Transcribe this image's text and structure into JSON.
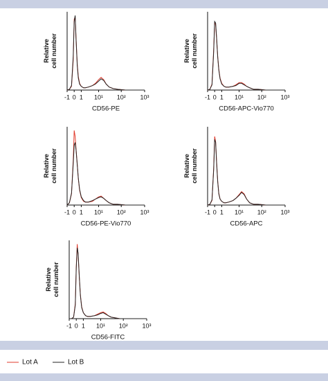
{
  "legend": [
    {
      "name": "Lot A",
      "color": "#e0392b"
    },
    {
      "name": "Lot B",
      "color": "#222222"
    }
  ],
  "chart_data": [
    {
      "type": "line",
      "xlabel": "CD56-PE",
      "ylabel": [
        "Relative",
        "cell number"
      ],
      "xscale": "symlog",
      "xlim": [
        -1,
        1000
      ],
      "ylim": [
        0,
        105
      ],
      "xticks": [
        -1,
        0,
        1,
        {
          "value": 10,
          "label": "10¹"
        },
        {
          "value": 100,
          "label": "10²"
        },
        {
          "value": 1000,
          "label": "10³"
        }
      ],
      "x": [
        -1,
        -0.6,
        -0.3,
        -0.1,
        0,
        0.1,
        0.2,
        0.35,
        0.5,
        0.7,
        1,
        1.5,
        2,
        3,
        5,
        7,
        10,
        13,
        17,
        22,
        30,
        45,
        70,
        150,
        1000
      ],
      "series": [
        {
          "values": [
            0,
            1,
            5,
            40,
            95,
            98,
            70,
            35,
            18,
            9,
            5,
            3,
            3,
            4,
            6,
            9,
            14,
            17,
            14,
            8,
            4,
            2,
            1,
            0,
            0
          ]
        },
        {
          "values": [
            0,
            1,
            6,
            45,
            92,
            100,
            68,
            33,
            16,
            8,
            5,
            3,
            3,
            4,
            6,
            8,
            12,
            15,
            13,
            8,
            4,
            2,
            1,
            0,
            0
          ]
        }
      ]
    },
    {
      "type": "line",
      "xlabel": "CD56-APC-Vio770",
      "ylabel": [
        "Relative",
        "cell number"
      ],
      "xscale": "symlog",
      "xlim": [
        -1,
        1000
      ],
      "ylim": [
        0,
        105
      ],
      "xticks": [
        -1,
        0,
        1,
        {
          "value": 10,
          "label": "10¹"
        },
        {
          "value": 100,
          "label": "10²"
        },
        {
          "value": 1000,
          "label": "10³"
        }
      ],
      "x": [
        -1,
        -0.6,
        -0.3,
        -0.1,
        0,
        0.1,
        0.2,
        0.35,
        0.5,
        0.7,
        1,
        1.5,
        2,
        3,
        5,
        7,
        10,
        13,
        17,
        22,
        30,
        45,
        70,
        150,
        1000
      ],
      "series": [
        {
          "values": [
            0,
            1,
            8,
            55,
            90,
            88,
            70,
            45,
            28,
            16,
            9,
            5,
            4,
            4,
            5,
            7,
            10,
            10,
            8,
            5,
            3,
            1,
            1,
            0,
            0
          ]
        },
        {
          "values": [
            0,
            1,
            7,
            52,
            92,
            90,
            72,
            44,
            27,
            15,
            8,
            5,
            4,
            4,
            5,
            6,
            9,
            9,
            7,
            5,
            3,
            1,
            1,
            0,
            0
          ]
        }
      ]
    },
    {
      "type": "line",
      "xlabel": "CD56-PE-Vio770",
      "ylabel": [
        "Relative",
        "cell number"
      ],
      "xscale": "symlog",
      "xlim": [
        -1,
        1000
      ],
      "ylim": [
        0,
        105
      ],
      "xticks": [
        -1,
        0,
        1,
        {
          "value": 10,
          "label": "10¹"
        },
        {
          "value": 100,
          "label": "10²"
        },
        {
          "value": 1000,
          "label": "10³"
        }
      ],
      "x": [
        -1,
        -0.6,
        -0.3,
        -0.1,
        0,
        0.1,
        0.2,
        0.35,
        0.5,
        0.7,
        1,
        1.5,
        2,
        3,
        5,
        7,
        10,
        13,
        17,
        22,
        30,
        45,
        70,
        150,
        1000
      ],
      "series": [
        {
          "values": [
            0,
            3,
            15,
            60,
            100,
            92,
            75,
            55,
            35,
            20,
            10,
            5,
            4,
            4,
            5,
            8,
            11,
            12,
            9,
            6,
            3,
            1,
            1,
            0,
            0
          ]
        },
        {
          "values": [
            0,
            3,
            16,
            55,
            80,
            84,
            74,
            54,
            36,
            21,
            11,
            6,
            4,
            4,
            6,
            8,
            10,
            11,
            9,
            6,
            3,
            1,
            1,
            0,
            0
          ]
        }
      ]
    },
    {
      "type": "line",
      "xlabel": "CD56-APC",
      "ylabel": [
        "Relative",
        "cell number"
      ],
      "xscale": "symlog",
      "xlim": [
        -1,
        1000
      ],
      "ylim": [
        0,
        105
      ],
      "xticks": [
        -1,
        0,
        1,
        {
          "value": 10,
          "label": "10¹"
        },
        {
          "value": 100,
          "label": "10²"
        },
        {
          "value": 1000,
          "label": "10³"
        }
      ],
      "x": [
        -1,
        -0.6,
        -0.3,
        -0.1,
        0,
        0.1,
        0.2,
        0.35,
        0.5,
        0.7,
        1,
        1.5,
        2,
        3,
        5,
        7,
        10,
        13,
        17,
        22,
        30,
        45,
        70,
        150,
        1000
      ],
      "series": [
        {
          "values": [
            0,
            1,
            6,
            50,
            92,
            85,
            60,
            32,
            16,
            8,
            5,
            3,
            3,
            4,
            6,
            9,
            14,
            18,
            15,
            8,
            3,
            1,
            1,
            0,
            0
          ]
        },
        {
          "values": [
            0,
            1,
            7,
            48,
            88,
            84,
            58,
            31,
            15,
            8,
            5,
            3,
            3,
            4,
            6,
            9,
            13,
            17,
            14,
            8,
            3,
            1,
            1,
            0,
            0
          ]
        }
      ]
    },
    {
      "type": "line",
      "xlabel": "CD56-FITC",
      "ylabel": [
        "Relative",
        "cell number"
      ],
      "xscale": "symlog",
      "xlim": [
        -1,
        1000
      ],
      "ylim": [
        0,
        105
      ],
      "xticks": [
        -1,
        0,
        1,
        {
          "value": 10,
          "label": "10¹"
        },
        {
          "value": 100,
          "label": "10²"
        },
        {
          "value": 1000,
          "label": "10³"
        }
      ],
      "x": [
        -1,
        -0.6,
        -0.3,
        -0.1,
        0,
        0.1,
        0.2,
        0.35,
        0.5,
        0.7,
        1,
        1.5,
        2,
        3,
        5,
        7,
        10,
        13,
        17,
        22,
        30,
        45,
        70,
        150,
        1000
      ],
      "series": [
        {
          "values": [
            0,
            0,
            2,
            20,
            70,
            100,
            85,
            55,
            32,
            16,
            8,
            4,
            3,
            3,
            4,
            6,
            8,
            9,
            7,
            4,
            2,
            1,
            0,
            0,
            0
          ]
        },
        {
          "values": [
            0,
            0,
            2,
            18,
            68,
            95,
            88,
            56,
            31,
            15,
            8,
            4,
            3,
            3,
            4,
            5,
            7,
            8,
            6,
            4,
            2,
            1,
            0,
            0,
            0
          ]
        }
      ]
    }
  ]
}
